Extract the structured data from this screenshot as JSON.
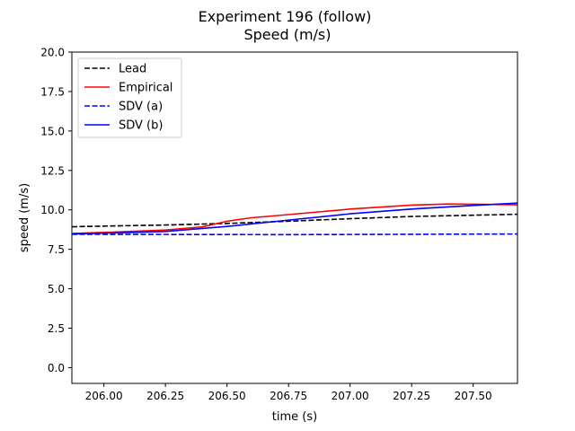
{
  "chart_data": {
    "type": "line",
    "title": "Experiment 196 (follow)",
    "subtitle": "Speed (m/s)",
    "xlabel": "time (s)",
    "ylabel": "speed (m/s)",
    "xlim": [
      205.87,
      207.68
    ],
    "ylim": [
      -1.0,
      20.0
    ],
    "xticks": [
      206.0,
      206.25,
      206.5,
      206.75,
      207.0,
      207.25,
      207.5
    ],
    "xtick_labels": [
      "206.00",
      "206.25",
      "206.50",
      "206.75",
      "207.00",
      "207.25",
      "207.50"
    ],
    "yticks": [
      0.0,
      2.5,
      5.0,
      7.5,
      10.0,
      12.5,
      15.0,
      17.5,
      20.0
    ],
    "ytick_labels": [
      "0.0",
      "2.5",
      "5.0",
      "7.5",
      "10.0",
      "12.5",
      "15.0",
      "17.5",
      "20.0"
    ],
    "grid": false,
    "legend_position": "top-left",
    "series": [
      {
        "name": "Lead",
        "color": "#000000",
        "dash": "dashed",
        "points": [
          [
            205.87,
            8.93
          ],
          [
            206.0,
            8.97
          ],
          [
            206.25,
            9.04
          ],
          [
            206.5,
            9.14
          ],
          [
            206.75,
            9.28
          ],
          [
            207.0,
            9.44
          ],
          [
            207.25,
            9.58
          ],
          [
            207.5,
            9.66
          ],
          [
            207.68,
            9.72
          ]
        ]
      },
      {
        "name": "Empirical",
        "color": "#ff0000",
        "dash": "solid",
        "points": [
          [
            205.87,
            8.5
          ],
          [
            206.0,
            8.57
          ],
          [
            206.25,
            8.72
          ],
          [
            206.4,
            8.92
          ],
          [
            206.5,
            9.28
          ],
          [
            206.6,
            9.5
          ],
          [
            206.75,
            9.7
          ],
          [
            207.0,
            10.05
          ],
          [
            207.25,
            10.3
          ],
          [
            207.4,
            10.37
          ],
          [
            207.5,
            10.36
          ],
          [
            207.68,
            10.32
          ]
        ]
      },
      {
        "name": "SDV (a)",
        "color": "#0000ff",
        "dash": "dashed",
        "points": [
          [
            205.87,
            8.45
          ],
          [
            206.25,
            8.44
          ],
          [
            206.75,
            8.43
          ],
          [
            207.25,
            8.45
          ],
          [
            207.68,
            8.47
          ]
        ]
      },
      {
        "name": "SDV (b)",
        "color": "#0000ff",
        "dash": "solid",
        "points": [
          [
            205.87,
            8.47
          ],
          [
            206.0,
            8.52
          ],
          [
            206.25,
            8.63
          ],
          [
            206.5,
            8.95
          ],
          [
            206.75,
            9.35
          ],
          [
            207.0,
            9.75
          ],
          [
            207.25,
            10.05
          ],
          [
            207.5,
            10.28
          ],
          [
            207.68,
            10.43
          ]
        ]
      }
    ]
  }
}
